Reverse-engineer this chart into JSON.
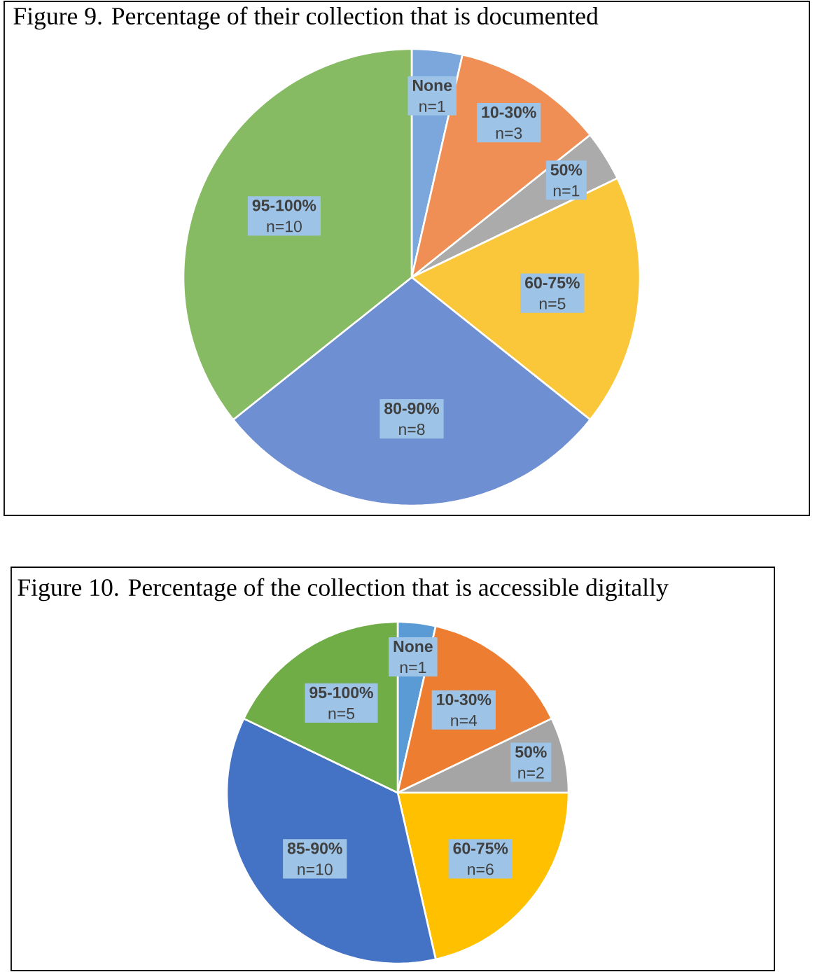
{
  "chart_data": [
    {
      "type": "pie",
      "title": "Figure 9. Percentage of their collection that is documented",
      "categories": [
        "None",
        "10-30%",
        "50%",
        "60-75%",
        "80-90%",
        "95-100%"
      ],
      "values": [
        1,
        3,
        1,
        5,
        8,
        10
      ],
      "value_labels": [
        "n=1",
        "n=3",
        "n=1",
        "n=5",
        "n=8",
        "n=10"
      ],
      "colors": [
        "#7ba7dc",
        "#ef8f55",
        "#ababab",
        "#fbc73a",
        "#6f8fd3",
        "#86bb63"
      ]
    },
    {
      "type": "pie",
      "title": "Figure 10. Percentage of the collection that is accessible digitally",
      "categories": [
        "None",
        "10-30%",
        "50%",
        "60-75%",
        "85-90%",
        "95-100%"
      ],
      "values": [
        1,
        4,
        2,
        6,
        10,
        5
      ],
      "value_labels": [
        "n=1",
        "n=4",
        "n=2",
        "n=6",
        "n=10",
        "n=5"
      ],
      "colors": [
        "#5b9bd5",
        "#ed7d31",
        "#a5a5a5",
        "#ffc000",
        "#4472c4",
        "#70ad47"
      ]
    }
  ]
}
